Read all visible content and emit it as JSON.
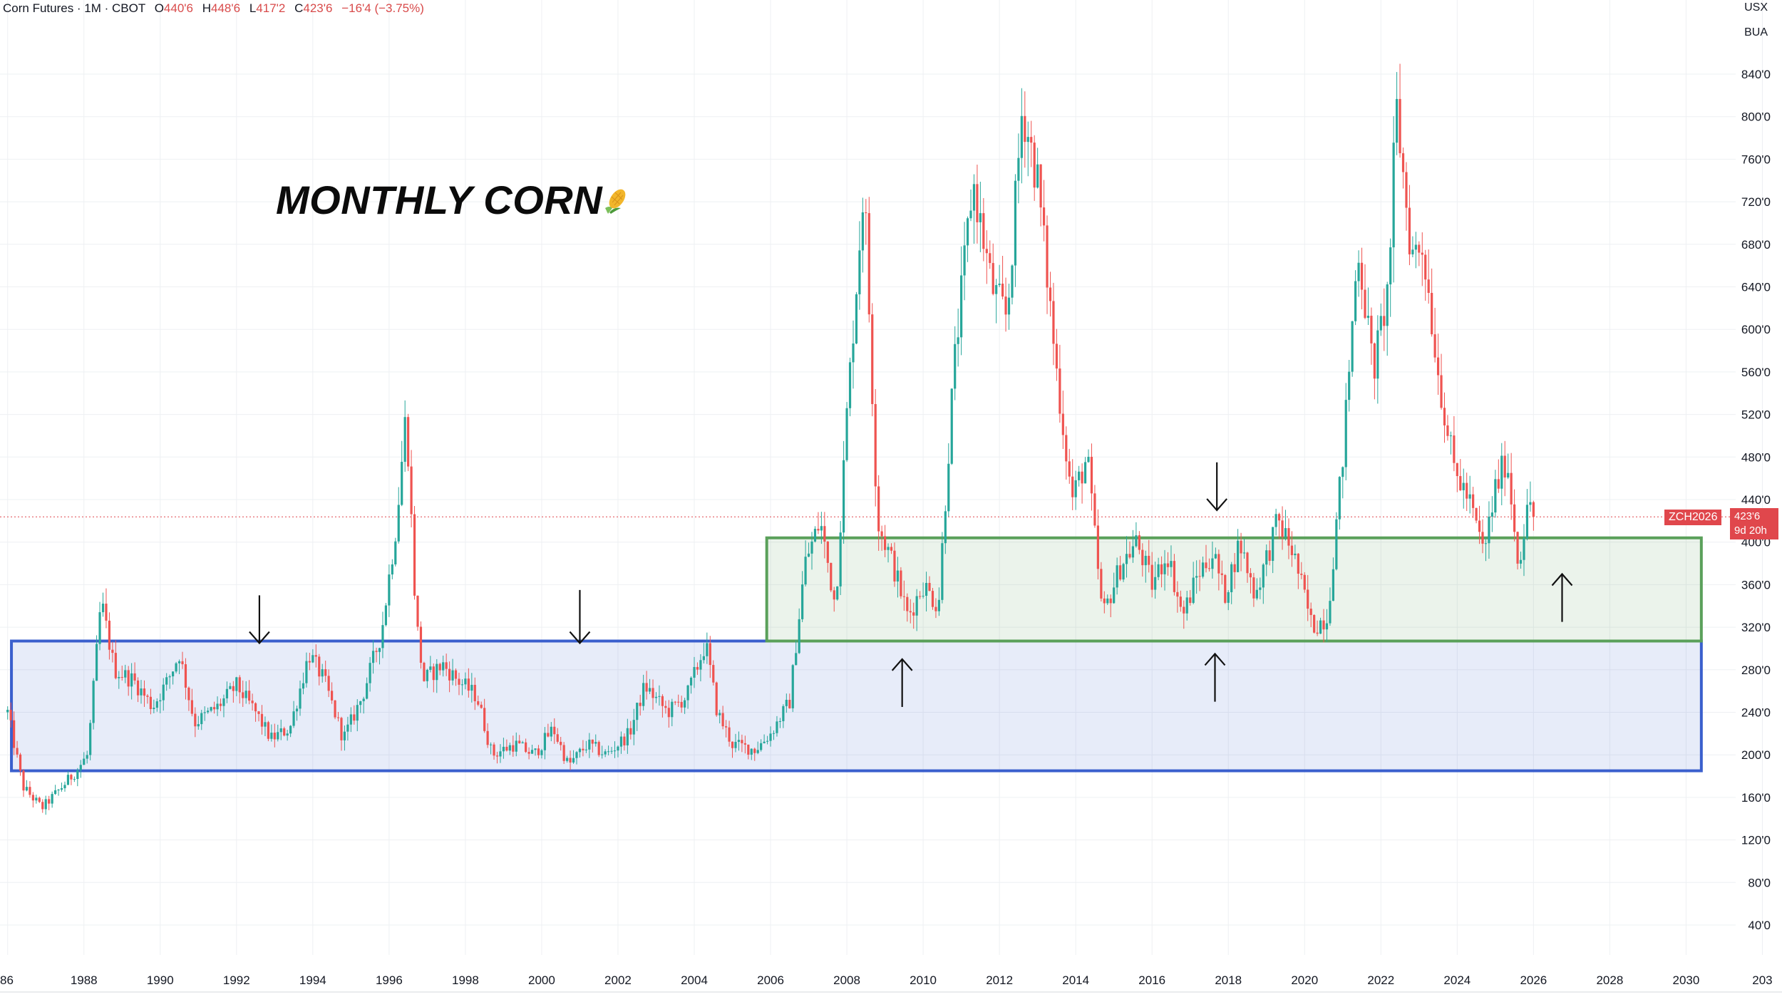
{
  "header": {
    "symbol": "Corn Futures · 1M · CBOT",
    "open_label": "O",
    "open": "440'6",
    "high_label": "H",
    "high": "448'6",
    "low_label": "L",
    "low": "417'2",
    "close_label": "C",
    "close": "423'6",
    "change": "−16'4 (−3.75%)"
  },
  "units": {
    "currency": "USX",
    "unit": "BUA"
  },
  "title": "MONTHLY CORN",
  "price_tag": {
    "symbol": "ZCH2026",
    "last": "423'6",
    "countdown": "9d 20h"
  },
  "colors": {
    "up": "#26a69a",
    "down": "#ef5350",
    "blue_zone": "#3a5fcd",
    "green_zone": "#5aa05a",
    "price_line": "#e0474c"
  },
  "chart_data": {
    "type": "candlestick",
    "title": "MONTHLY CORN",
    "x_axis_labels": [
      "86",
      "1988",
      "1990",
      "1992",
      "1994",
      "1996",
      "1998",
      "2000",
      "2002",
      "2004",
      "2006",
      "2008",
      "2010",
      "2012",
      "2014",
      "2016",
      "2018",
      "2020",
      "2022",
      "2024",
      "2026",
      "2028",
      "2030",
      "203"
    ],
    "y_axis_labels": [
      "840'0",
      "800'0",
      "760'0",
      "720'0",
      "680'0",
      "640'0",
      "600'0",
      "560'0",
      "520'0",
      "480'0",
      "440'0",
      "400'0",
      "360'0",
      "320'0",
      "280'0",
      "240'0",
      "200'0",
      "160'0",
      "120'0",
      "80'0",
      "40'0"
    ],
    "ylim": [
      20,
      880
    ],
    "xlim": [
      1985.8,
      2031.3
    ],
    "price_path": [
      [
        1986.0,
        240
      ],
      [
        1986.4,
        170
      ],
      [
        1986.9,
        150
      ],
      [
        1987.3,
        165
      ],
      [
        1987.8,
        185
      ],
      [
        1988.1,
        200
      ],
      [
        1988.45,
        345
      ],
      [
        1988.8,
        280
      ],
      [
        1989.3,
        270
      ],
      [
        1989.8,
        245
      ],
      [
        1990.2,
        270
      ],
      [
        1990.5,
        295
      ],
      [
        1990.9,
        230
      ],
      [
        1991.5,
        245
      ],
      [
        1992.0,
        265
      ],
      [
        1992.5,
        240
      ],
      [
        1992.9,
        215
      ],
      [
        1993.4,
        225
      ],
      [
        1993.9,
        295
      ],
      [
        1994.3,
        270
      ],
      [
        1994.8,
        215
      ],
      [
        1995.3,
        255
      ],
      [
        1995.8,
        315
      ],
      [
        1996.2,
        420
      ],
      [
        1996.45,
        525
      ],
      [
        1996.7,
        330
      ],
      [
        1996.9,
        270
      ],
      [
        1997.4,
        285
      ],
      [
        1997.8,
        270
      ],
      [
        1998.3,
        255
      ],
      [
        1998.7,
        200
      ],
      [
        1999.3,
        210
      ],
      [
        1999.8,
        200
      ],
      [
        2000.3,
        225
      ],
      [
        2000.7,
        190
      ],
      [
        2001.2,
        210
      ],
      [
        2001.7,
        200
      ],
      [
        2002.3,
        220
      ],
      [
        2002.7,
        265
      ],
      [
        2003.3,
        240
      ],
      [
        2003.8,
        255
      ],
      [
        2004.3,
        305
      ],
      [
        2004.6,
        240
      ],
      [
        2005.0,
        210
      ],
      [
        2005.6,
        205
      ],
      [
        2006.0,
        220
      ],
      [
        2006.5,
        250
      ],
      [
        2006.9,
        380
      ],
      [
        2007.3,
        420
      ],
      [
        2007.7,
        340
      ],
      [
        2008.0,
        520
      ],
      [
        2008.45,
        740
      ],
      [
        2008.8,
        420
      ],
      [
        2009.2,
        380
      ],
      [
        2009.6,
        330
      ],
      [
        2010.0,
        360
      ],
      [
        2010.4,
        340
      ],
      [
        2010.8,
        560
      ],
      [
        2011.3,
        740
      ],
      [
        2011.8,
        640
      ],
      [
        2012.2,
        610
      ],
      [
        2012.6,
        810
      ],
      [
        2013.0,
        740
      ],
      [
        2013.5,
        560
      ],
      [
        2013.9,
        440
      ],
      [
        2014.3,
        480
      ],
      [
        2014.7,
        330
      ],
      [
        2015.2,
        380
      ],
      [
        2015.6,
        400
      ],
      [
        2016.0,
        360
      ],
      [
        2016.4,
        390
      ],
      [
        2016.8,
        330
      ],
      [
        2017.2,
        370
      ],
      [
        2017.6,
        390
      ],
      [
        2017.9,
        350
      ],
      [
        2018.3,
        400
      ],
      [
        2018.7,
        350
      ],
      [
        2019.3,
        420
      ],
      [
        2019.7,
        390
      ],
      [
        2020.2,
        320
      ],
      [
        2020.6,
        330
      ],
      [
        2021.0,
        480
      ],
      [
        2021.4,
        680
      ],
      [
        2021.8,
        560
      ],
      [
        2022.2,
        640
      ],
      [
        2022.4,
        810
      ],
      [
        2022.8,
        670
      ],
      [
        2023.1,
        680
      ],
      [
        2023.5,
        560
      ],
      [
        2023.9,
        470
      ],
      [
        2024.3,
        440
      ],
      [
        2024.7,
        390
      ],
      [
        2025.0,
        450
      ],
      [
        2025.3,
        480
      ],
      [
        2025.6,
        380
      ],
      [
        2025.9,
        440
      ],
      [
        2026.0,
        424
      ]
    ],
    "zones": [
      {
        "name": "blue",
        "x": [
          1986.1,
          2030.4
        ],
        "y": [
          185,
          307
        ]
      },
      {
        "name": "green",
        "x": [
          2005.9,
          2030.4
        ],
        "y": [
          307,
          404
        ]
      }
    ],
    "arrows": [
      {
        "direction": "down",
        "x": 1992.6,
        "y": [
          350,
          305
        ]
      },
      {
        "direction": "down",
        "x": 2001.0,
        "y": [
          355,
          305
        ]
      },
      {
        "direction": "up",
        "x": 2009.45,
        "y": [
          245,
          290
        ]
      },
      {
        "direction": "down",
        "x": 2017.7,
        "y": [
          475,
          430
        ]
      },
      {
        "direction": "up",
        "x": 2017.65,
        "y": [
          250,
          295
        ]
      },
      {
        "direction": "up",
        "x": 2026.75,
        "y": [
          325,
          370
        ]
      }
    ],
    "last_price": 423.75,
    "grid": true
  }
}
